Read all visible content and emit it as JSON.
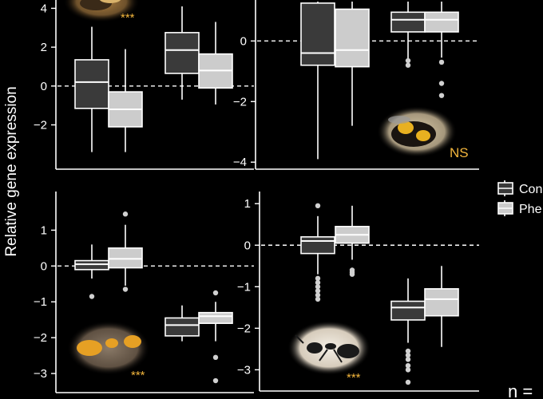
{
  "figure": {
    "ylabel": "Relative gene expression",
    "legend": {
      "placement": "right",
      "entries": [
        {
          "label": "Con",
          "color": "#3a3a3a"
        },
        {
          "label": "Phe",
          "color": "#cccccc"
        }
      ]
    },
    "n_label": "n ="
  },
  "colors": {
    "control": "#3a3a3a",
    "treatment": "#cccccc",
    "outlier": "#d0d0d0",
    "axis": "#ffffff",
    "significance": "#f2b53c"
  },
  "chart_data": [
    {
      "type": "boxplot",
      "panel": "top-left",
      "ylim": [
        -3.5,
        4.1
      ],
      "yticks": [
        -2,
        0,
        2,
        4
      ],
      "reference_line": 0,
      "significance": "***",
      "picture": "honey-bee",
      "series": [
        {
          "name": "Con",
          "color": "#3a3a3a",
          "boxes": [
            {
              "group": 1,
              "whisker_low": -3.4,
              "q1": -1.15,
              "median": 0.2,
              "q3": 1.35,
              "whisker_high": 3.05,
              "outliers": []
            },
            {
              "group": 2,
              "whisker_low": -0.7,
              "q1": 0.65,
              "median": 1.85,
              "q3": 2.75,
              "whisker_high": 4.1,
              "outliers": []
            }
          ]
        },
        {
          "name": "Phe",
          "color": "#cccccc",
          "boxes": [
            {
              "group": 1,
              "whisker_low": -3.4,
              "q1": -2.1,
              "median": -1.2,
              "q3": -0.3,
              "whisker_high": 1.9,
              "outliers": []
            },
            {
              "group": 2,
              "whisker_low": -0.95,
              "q1": -0.1,
              "median": 0.8,
              "q3": 1.65,
              "whisker_high": 3.3,
              "outliers": []
            }
          ]
        }
      ]
    },
    {
      "type": "boxplot",
      "panel": "top-right",
      "ylim": [
        -4.1,
        1.3
      ],
      "yticks": [
        -4,
        -2,
        0
      ],
      "reference_line": 0,
      "significance": "NS",
      "picture": "bumble-bee",
      "series": [
        {
          "name": "Con",
          "color": "#3a3a3a",
          "boxes": [
            {
              "group": 1,
              "whisker_low": -3.9,
              "q1": -0.8,
              "median": -0.4,
              "q3": 1.25,
              "whisker_high": 1.3,
              "outliers": []
            },
            {
              "group": 2,
              "whisker_low": -0.6,
              "q1": 0.3,
              "median": 0.7,
              "q3": 0.95,
              "whisker_high": 1.3,
              "outliers": [
                -0.65,
                -0.8
              ]
            }
          ]
        },
        {
          "name": "Phe",
          "color": "#cccccc",
          "boxes": [
            {
              "group": 1,
              "whisker_low": -2.8,
              "q1": -0.85,
              "median": -0.3,
              "q3": 1.05,
              "whisker_high": 1.3,
              "outliers": []
            },
            {
              "group": 2,
              "whisker_low": -0.55,
              "q1": 0.3,
              "median": 0.7,
              "q3": 0.95,
              "whisker_high": 1.3,
              "outliers": [
                -0.7,
                -1.4,
                -1.8
              ]
            }
          ]
        }
      ]
    },
    {
      "type": "boxplot",
      "panel": "bottom-left",
      "ylim": [
        -3.4,
        1.7
      ],
      "yticks": [
        -3,
        -2,
        -1,
        0,
        1
      ],
      "reference_line": 0,
      "significance": "***",
      "picture": "yellow-ant",
      "series": [
        {
          "name": "Con",
          "color": "#3a3a3a",
          "boxes": [
            {
              "group": 1,
              "whisker_low": -0.35,
              "q1": -0.1,
              "median": 0.05,
              "q3": 0.15,
              "whisker_high": 0.6,
              "outliers": [
                -0.85
              ]
            },
            {
              "group": 2,
              "whisker_low": -2.1,
              "q1": -1.95,
              "median": -1.65,
              "q3": -1.45,
              "whisker_high": -1.1,
              "outliers": []
            }
          ]
        },
        {
          "name": "Phe",
          "color": "#cccccc",
          "boxes": [
            {
              "group": 1,
              "whisker_low": -0.55,
              "q1": -0.05,
              "median": 0.2,
              "q3": 0.5,
              "whisker_high": 1.15,
              "outliers": [
                1.45,
                -0.65
              ]
            },
            {
              "group": 2,
              "whisker_low": -2.1,
              "q1": -1.6,
              "median": -1.4,
              "q3": -1.3,
              "whisker_high": -1.0,
              "outliers": [
                -0.75,
                -2.55,
                -3.2
              ]
            }
          ]
        }
      ]
    },
    {
      "type": "boxplot",
      "panel": "bottom-right",
      "ylim": [
        -3.3,
        1.1
      ],
      "yticks": [
        -3,
        -2,
        -1,
        0,
        1
      ],
      "reference_line": 0,
      "significance": "***",
      "picture": "black-ant",
      "series": [
        {
          "name": "Con",
          "color": "#3a3a3a",
          "boxes": [
            {
              "group": 1,
              "whisker_low": -0.7,
              "q1": -0.2,
              "median": 0.1,
              "q3": 0.2,
              "whisker_high": 0.7,
              "outliers": [
                0.95,
                -0.8,
                -0.9,
                -1.0,
                -1.1,
                -1.2,
                -1.3
              ]
            },
            {
              "group": 2,
              "whisker_low": -2.35,
              "q1": -1.8,
              "median": -1.5,
              "q3": -1.35,
              "whisker_high": -0.8,
              "outliers": [
                -2.55,
                -2.65,
                -2.75,
                -2.9,
                -3.0,
                -3.3
              ]
            }
          ]
        },
        {
          "name": "Phe",
          "color": "#cccccc",
          "boxes": [
            {
              "group": 1,
              "whisker_low": -0.35,
              "q1": 0.05,
              "median": 0.25,
              "q3": 0.45,
              "whisker_high": 0.95,
              "outliers": [
                -0.6,
                -0.65,
                -0.7
              ]
            },
            {
              "group": 2,
              "whisker_low": -2.45,
              "q1": -1.7,
              "median": -1.3,
              "q3": -1.05,
              "whisker_high": -0.5,
              "outliers": []
            }
          ]
        }
      ]
    }
  ]
}
